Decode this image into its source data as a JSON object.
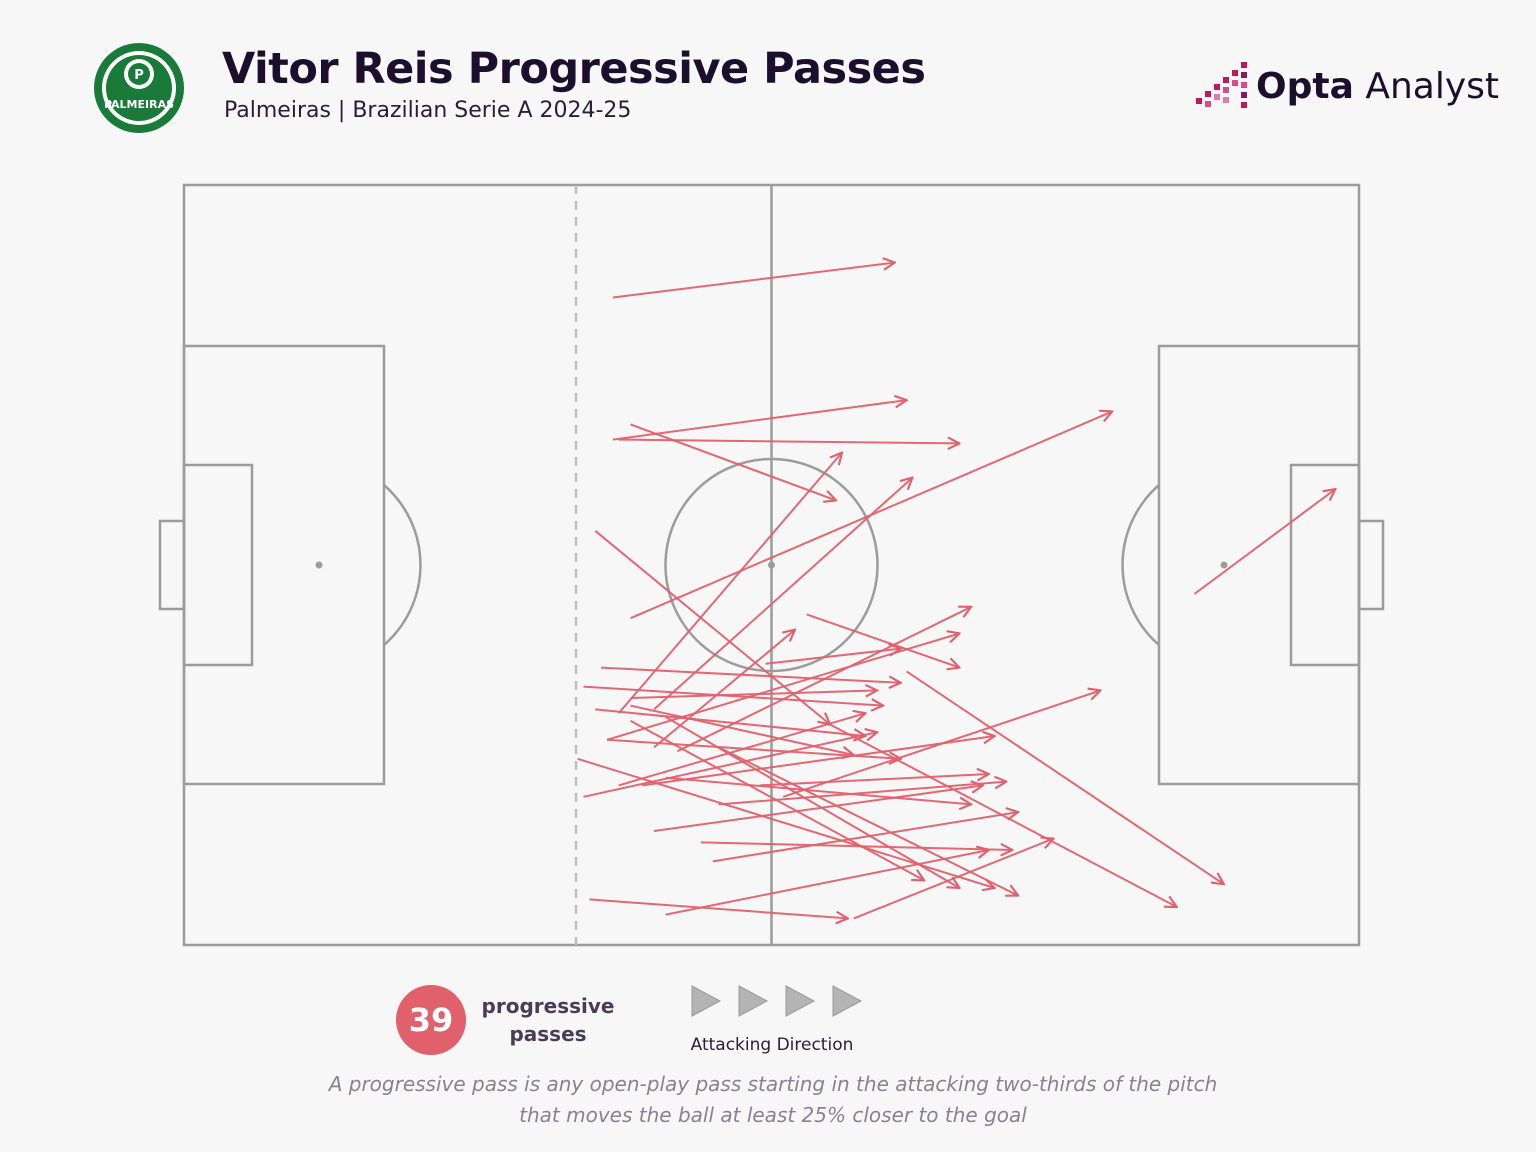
{
  "header": {
    "title": "Vitor Reis Progressive Passes",
    "subtitle": "Palmeiras | Brazilian Serie A 2024-25",
    "club_logo_text": "PALMEIRAS",
    "brand_bold": "Opta",
    "brand_light": " Analyst"
  },
  "summary": {
    "count": "39",
    "count_label_line1": "progressive",
    "count_label_line2": "passes",
    "direction_label": "Attacking Direction"
  },
  "footnote": {
    "line1": "A progressive pass is any open-play pass starting in the attacking two-thirds of the pitch",
    "line2": "that moves the ball at least 25% closer to the goal"
  },
  "colors": {
    "pass_arrow": "#e0606b",
    "pitch_lines": "#9c9c9c",
    "club_green": "#1a7a3a",
    "brand_magenta": "#c2185b"
  },
  "icons": [
    "club-crest-icon",
    "opta-mark-icon",
    "direction-arrow-icon"
  ],
  "pass_data": {
    "units": "pitch percent (x: 0 own goal to 100 opponent goal, y: 0 top touchline to 100 bottom touchline)",
    "passes": [
      [
        36.5,
        14.8,
        60.5,
        10.2
      ],
      [
        36.5,
        33.5,
        61.5,
        28.3
      ],
      [
        38.0,
        31.5,
        55.5,
        41.5
      ],
      [
        37.0,
        33.5,
        66.0,
        34.0
      ],
      [
        38.0,
        57.0,
        79.0,
        29.8
      ],
      [
        35.0,
        45.5,
        55.0,
        71.0
      ],
      [
        37.0,
        69.5,
        56.0,
        35.2
      ],
      [
        40.0,
        69.0,
        62.0,
        38.5
      ],
      [
        86.0,
        53.8,
        98.0,
        40.0
      ],
      [
        36.0,
        73.0,
        66.0,
        59.0
      ],
      [
        42.0,
        74.5,
        67.0,
        55.5
      ],
      [
        53.0,
        56.5,
        66.0,
        63.5
      ],
      [
        49.5,
        63.0,
        61.0,
        61.0
      ],
      [
        40.0,
        74.0,
        52.0,
        58.5
      ],
      [
        35.5,
        63.5,
        61.0,
        65.5
      ],
      [
        38.0,
        67.5,
        59.0,
        66.5
      ],
      [
        34.0,
        66.0,
        59.5,
        68.5
      ],
      [
        35.0,
        69.0,
        58.0,
        72.5
      ],
      [
        38.0,
        68.5,
        57.0,
        75.0
      ],
      [
        36.0,
        73.0,
        61.0,
        75.5
      ],
      [
        37.0,
        79.0,
        58.0,
        69.5
      ],
      [
        34.0,
        80.5,
        59.0,
        72.0
      ],
      [
        41.0,
        78.0,
        67.0,
        81.5
      ],
      [
        39.0,
        79.0,
        69.0,
        72.5
      ],
      [
        51.0,
        80.5,
        78.0,
        66.5
      ],
      [
        45.5,
        81.5,
        70.0,
        78.5
      ],
      [
        40.0,
        85.0,
        68.0,
        79.0
      ],
      [
        44.0,
        86.5,
        70.5,
        87.5
      ],
      [
        45.0,
        89.0,
        71.0,
        82.5
      ],
      [
        38.0,
        70.5,
        63.0,
        91.5
      ],
      [
        41.0,
        70.0,
        66.0,
        92.5
      ],
      [
        45.5,
        74.0,
        71.0,
        93.5
      ],
      [
        33.5,
        75.5,
        69.0,
        92.5
      ],
      [
        61.5,
        64.0,
        88.5,
        92.0
      ],
      [
        55.0,
        71.0,
        84.5,
        95.0
      ],
      [
        34.5,
        94.0,
        56.5,
        96.5
      ],
      [
        41.0,
        96.0,
        68.5,
        87.5
      ],
      [
        57.0,
        96.5,
        74.0,
        86.0
      ],
      [
        49.0,
        79.0,
        68.5,
        77.5
      ]
    ]
  }
}
